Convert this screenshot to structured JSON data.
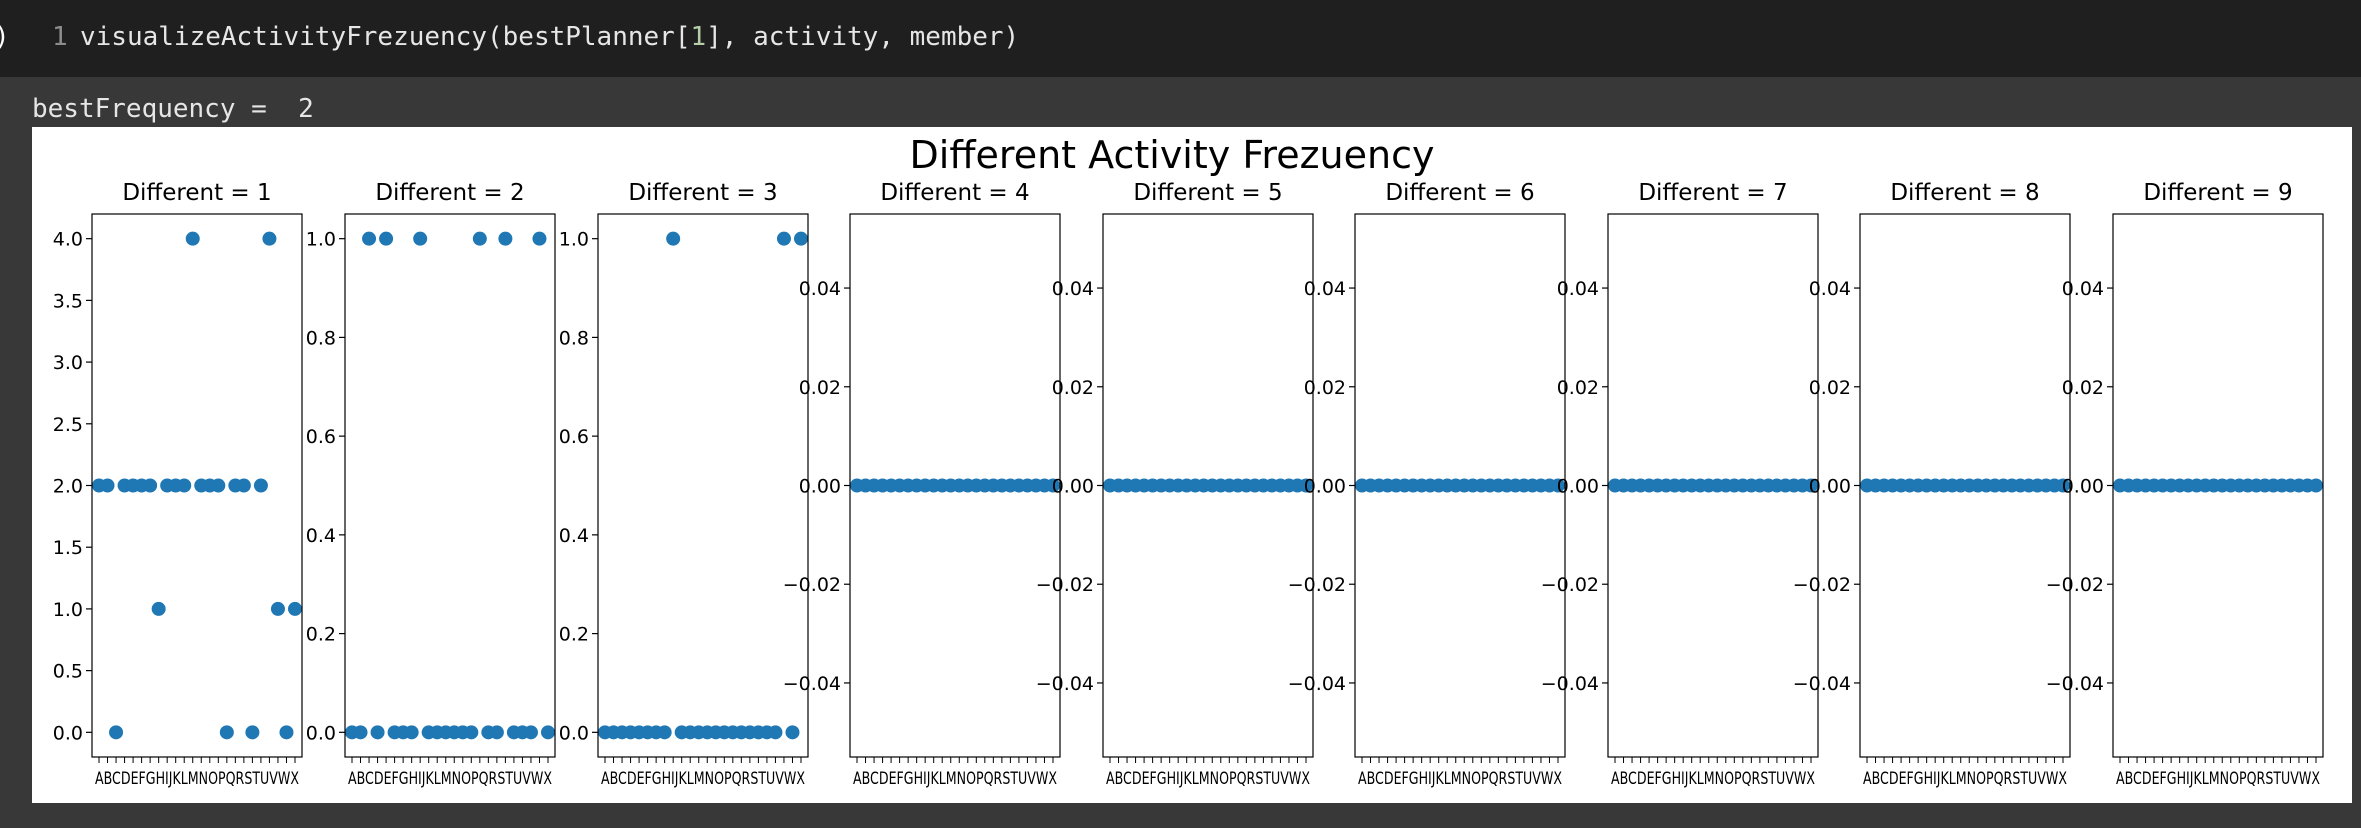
{
  "code_cell": {
    "marker": ")",
    "line_number": "1",
    "code_prefix": "visualizeActivityFrezuency(bestPlanner[",
    "code_index": "1",
    "code_suffix": "], activity, member)"
  },
  "output": {
    "text": "bestFrequency =  2"
  },
  "chart_data": {
    "type": "scatter",
    "title": "Different Activity Frezuency",
    "marker_color": "#1f77b4",
    "categories": [
      "A",
      "B",
      "C",
      "D",
      "E",
      "F",
      "G",
      "H",
      "I",
      "J",
      "K",
      "L",
      "M",
      "N",
      "O",
      "P",
      "Q",
      "R",
      "S",
      "T",
      "U",
      "V",
      "W",
      "X"
    ],
    "tick_text": "ABCDEFGHIJKLMNOPQRSTUVWX",
    "panels": [
      {
        "title": "Different = 1",
        "ylim": [
          -0.2,
          4.2
        ],
        "yticks": [
          "0.0",
          "0.5",
          "1.0",
          "1.5",
          "2.0",
          "2.5",
          "3.0",
          "3.5",
          "4.0"
        ],
        "ytick_values": [
          0,
          0.5,
          1,
          1.5,
          2,
          2.5,
          3,
          3.5,
          4
        ],
        "values": [
          2,
          2,
          0,
          2,
          2,
          2,
          2,
          1,
          2,
          2,
          2,
          4,
          2,
          2,
          2,
          0,
          2,
          2,
          0,
          2,
          4,
          1,
          0,
          1
        ]
      },
      {
        "title": "Different = 2",
        "ylim": [
          -0.05,
          1.05
        ],
        "yticks": [
          "0.0",
          "0.2",
          "0.4",
          "0.6",
          "0.8",
          "1.0"
        ],
        "ytick_values": [
          0,
          0.2,
          0.4,
          0.6,
          0.8,
          1
        ],
        "values": [
          0,
          0,
          1,
          0,
          1,
          0,
          0,
          0,
          1,
          0,
          0,
          0,
          0,
          0,
          0,
          1,
          0,
          0,
          1,
          0,
          0,
          0,
          1,
          0
        ]
      },
      {
        "title": "Different = 3",
        "ylim": [
          -0.05,
          1.05
        ],
        "yticks": [
          "0.0",
          "0.2",
          "0.4",
          "0.6",
          "0.8",
          "1.0"
        ],
        "ytick_values": [
          0,
          0.2,
          0.4,
          0.6,
          0.8,
          1
        ],
        "values": [
          0,
          0,
          0,
          0,
          0,
          0,
          0,
          0,
          1,
          0,
          0,
          0,
          0,
          0,
          0,
          0,
          0,
          0,
          0,
          0,
          0,
          1,
          0,
          1
        ]
      },
      {
        "title": "Different = 4",
        "ylim": [
          -0.055,
          0.055
        ],
        "yticks": [
          "−0.04",
          "−0.02",
          "0.00",
          "0.02",
          "0.04"
        ],
        "ytick_values": [
          -0.04,
          -0.02,
          0,
          0.02,
          0.04
        ],
        "values": [
          0,
          0,
          0,
          0,
          0,
          0,
          0,
          0,
          0,
          0,
          0,
          0,
          0,
          0,
          0,
          0,
          0,
          0,
          0,
          0,
          0,
          0,
          0,
          0
        ]
      },
      {
        "title": "Different = 5",
        "ylim": [
          -0.055,
          0.055
        ],
        "yticks": [
          "−0.04",
          "−0.02",
          "0.00",
          "0.02",
          "0.04"
        ],
        "ytick_values": [
          -0.04,
          -0.02,
          0,
          0.02,
          0.04
        ],
        "values": [
          0,
          0,
          0,
          0,
          0,
          0,
          0,
          0,
          0,
          0,
          0,
          0,
          0,
          0,
          0,
          0,
          0,
          0,
          0,
          0,
          0,
          0,
          0,
          0
        ]
      },
      {
        "title": "Different = 6",
        "ylim": [
          -0.055,
          0.055
        ],
        "yticks": [
          "−0.04",
          "−0.02",
          "0.00",
          "0.02",
          "0.04"
        ],
        "ytick_values": [
          -0.04,
          -0.02,
          0,
          0.02,
          0.04
        ],
        "values": [
          0,
          0,
          0,
          0,
          0,
          0,
          0,
          0,
          0,
          0,
          0,
          0,
          0,
          0,
          0,
          0,
          0,
          0,
          0,
          0,
          0,
          0,
          0,
          0
        ]
      },
      {
        "title": "Different = 7",
        "ylim": [
          -0.055,
          0.055
        ],
        "yticks": [
          "−0.04",
          "−0.02",
          "0.00",
          "0.02",
          "0.04"
        ],
        "ytick_values": [
          -0.04,
          -0.02,
          0,
          0.02,
          0.04
        ],
        "values": [
          0,
          0,
          0,
          0,
          0,
          0,
          0,
          0,
          0,
          0,
          0,
          0,
          0,
          0,
          0,
          0,
          0,
          0,
          0,
          0,
          0,
          0,
          0,
          0
        ]
      },
      {
        "title": "Different = 8",
        "ylim": [
          -0.055,
          0.055
        ],
        "yticks": [
          "−0.04",
          "−0.02",
          "0.00",
          "0.02",
          "0.04"
        ],
        "ytick_values": [
          -0.04,
          -0.02,
          0,
          0.02,
          0.04
        ],
        "values": [
          0,
          0,
          0,
          0,
          0,
          0,
          0,
          0,
          0,
          0,
          0,
          0,
          0,
          0,
          0,
          0,
          0,
          0,
          0,
          0,
          0,
          0,
          0,
          0
        ]
      },
      {
        "title": "Different = 9",
        "ylim": [
          -0.055,
          0.055
        ],
        "yticks": [
          "−0.04",
          "−0.02",
          "0.00",
          "0.02",
          "0.04"
        ],
        "ytick_values": [
          -0.04,
          -0.02,
          0,
          0.02,
          0.04
        ],
        "values": [
          0,
          0,
          0,
          0,
          0,
          0,
          0,
          0,
          0,
          0,
          0,
          0,
          0,
          0,
          0,
          0,
          0,
          0,
          0,
          0,
          0,
          0,
          0,
          0
        ]
      }
    ]
  }
}
